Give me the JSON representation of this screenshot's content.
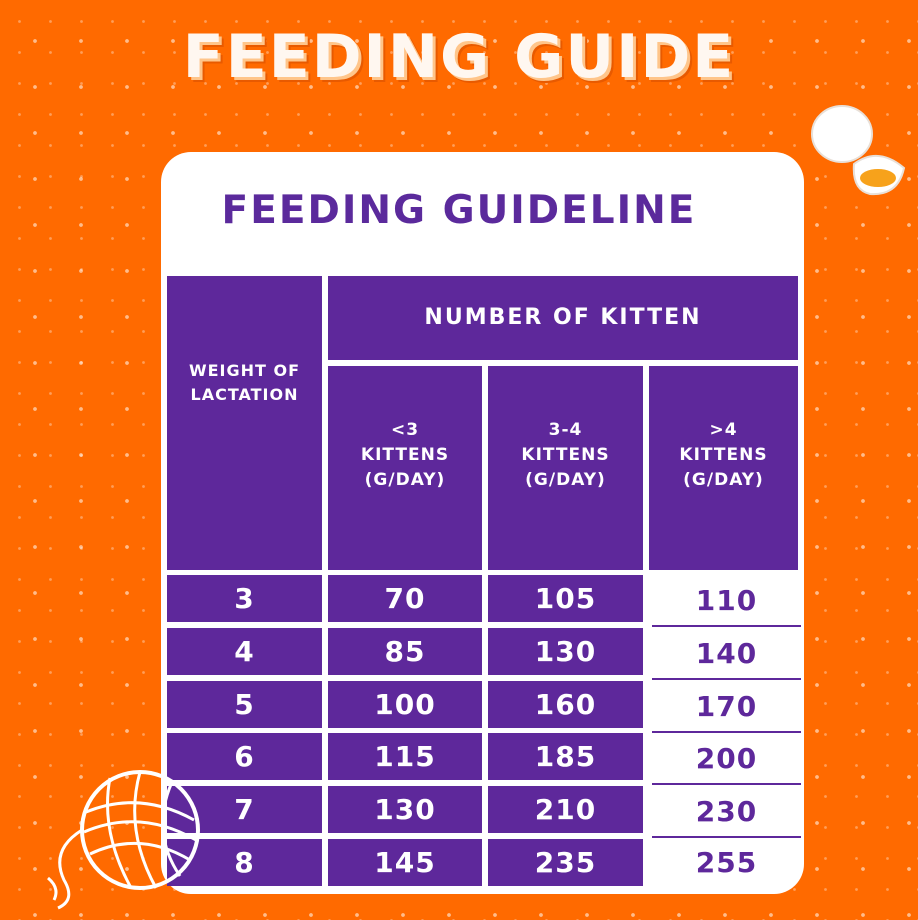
{
  "page_title": "FEEDING GUIDE",
  "card_title": "FEEDING GUIDELINE",
  "table": {
    "header_group": "NUMBER OF KITTEN",
    "weight_header": "WEIGHT OF LACTATION",
    "col1_header": "<3\nKITTENS\n(G/DAY)",
    "col2_header": "3-4\nKITTENS\n(G/DAY)",
    "col3_header": ">4\nKITTENS\n(G/DAY)",
    "rows": [
      {
        "weight": "3",
        "c1": "70",
        "c2": "105",
        "c3": "110"
      },
      {
        "weight": "4",
        "c1": "85",
        "c2": "130",
        "c3": "140"
      },
      {
        "weight": "5",
        "c1": "100",
        "c2": "160",
        "c3": "170"
      },
      {
        "weight": "6",
        "c1": "115",
        "c2": "185",
        "c3": "200"
      },
      {
        "weight": "7",
        "c1": "130",
        "c2": "210",
        "c3": "230"
      },
      {
        "weight": "8",
        "c1": "145",
        "c2": "235",
        "c3": "255"
      }
    ]
  },
  "colors": {
    "background": "#ff6a00",
    "purple": "#5e289b",
    "card": "#ffffff"
  },
  "icons": [
    "egg-icon",
    "yarn-ball-icon"
  ]
}
